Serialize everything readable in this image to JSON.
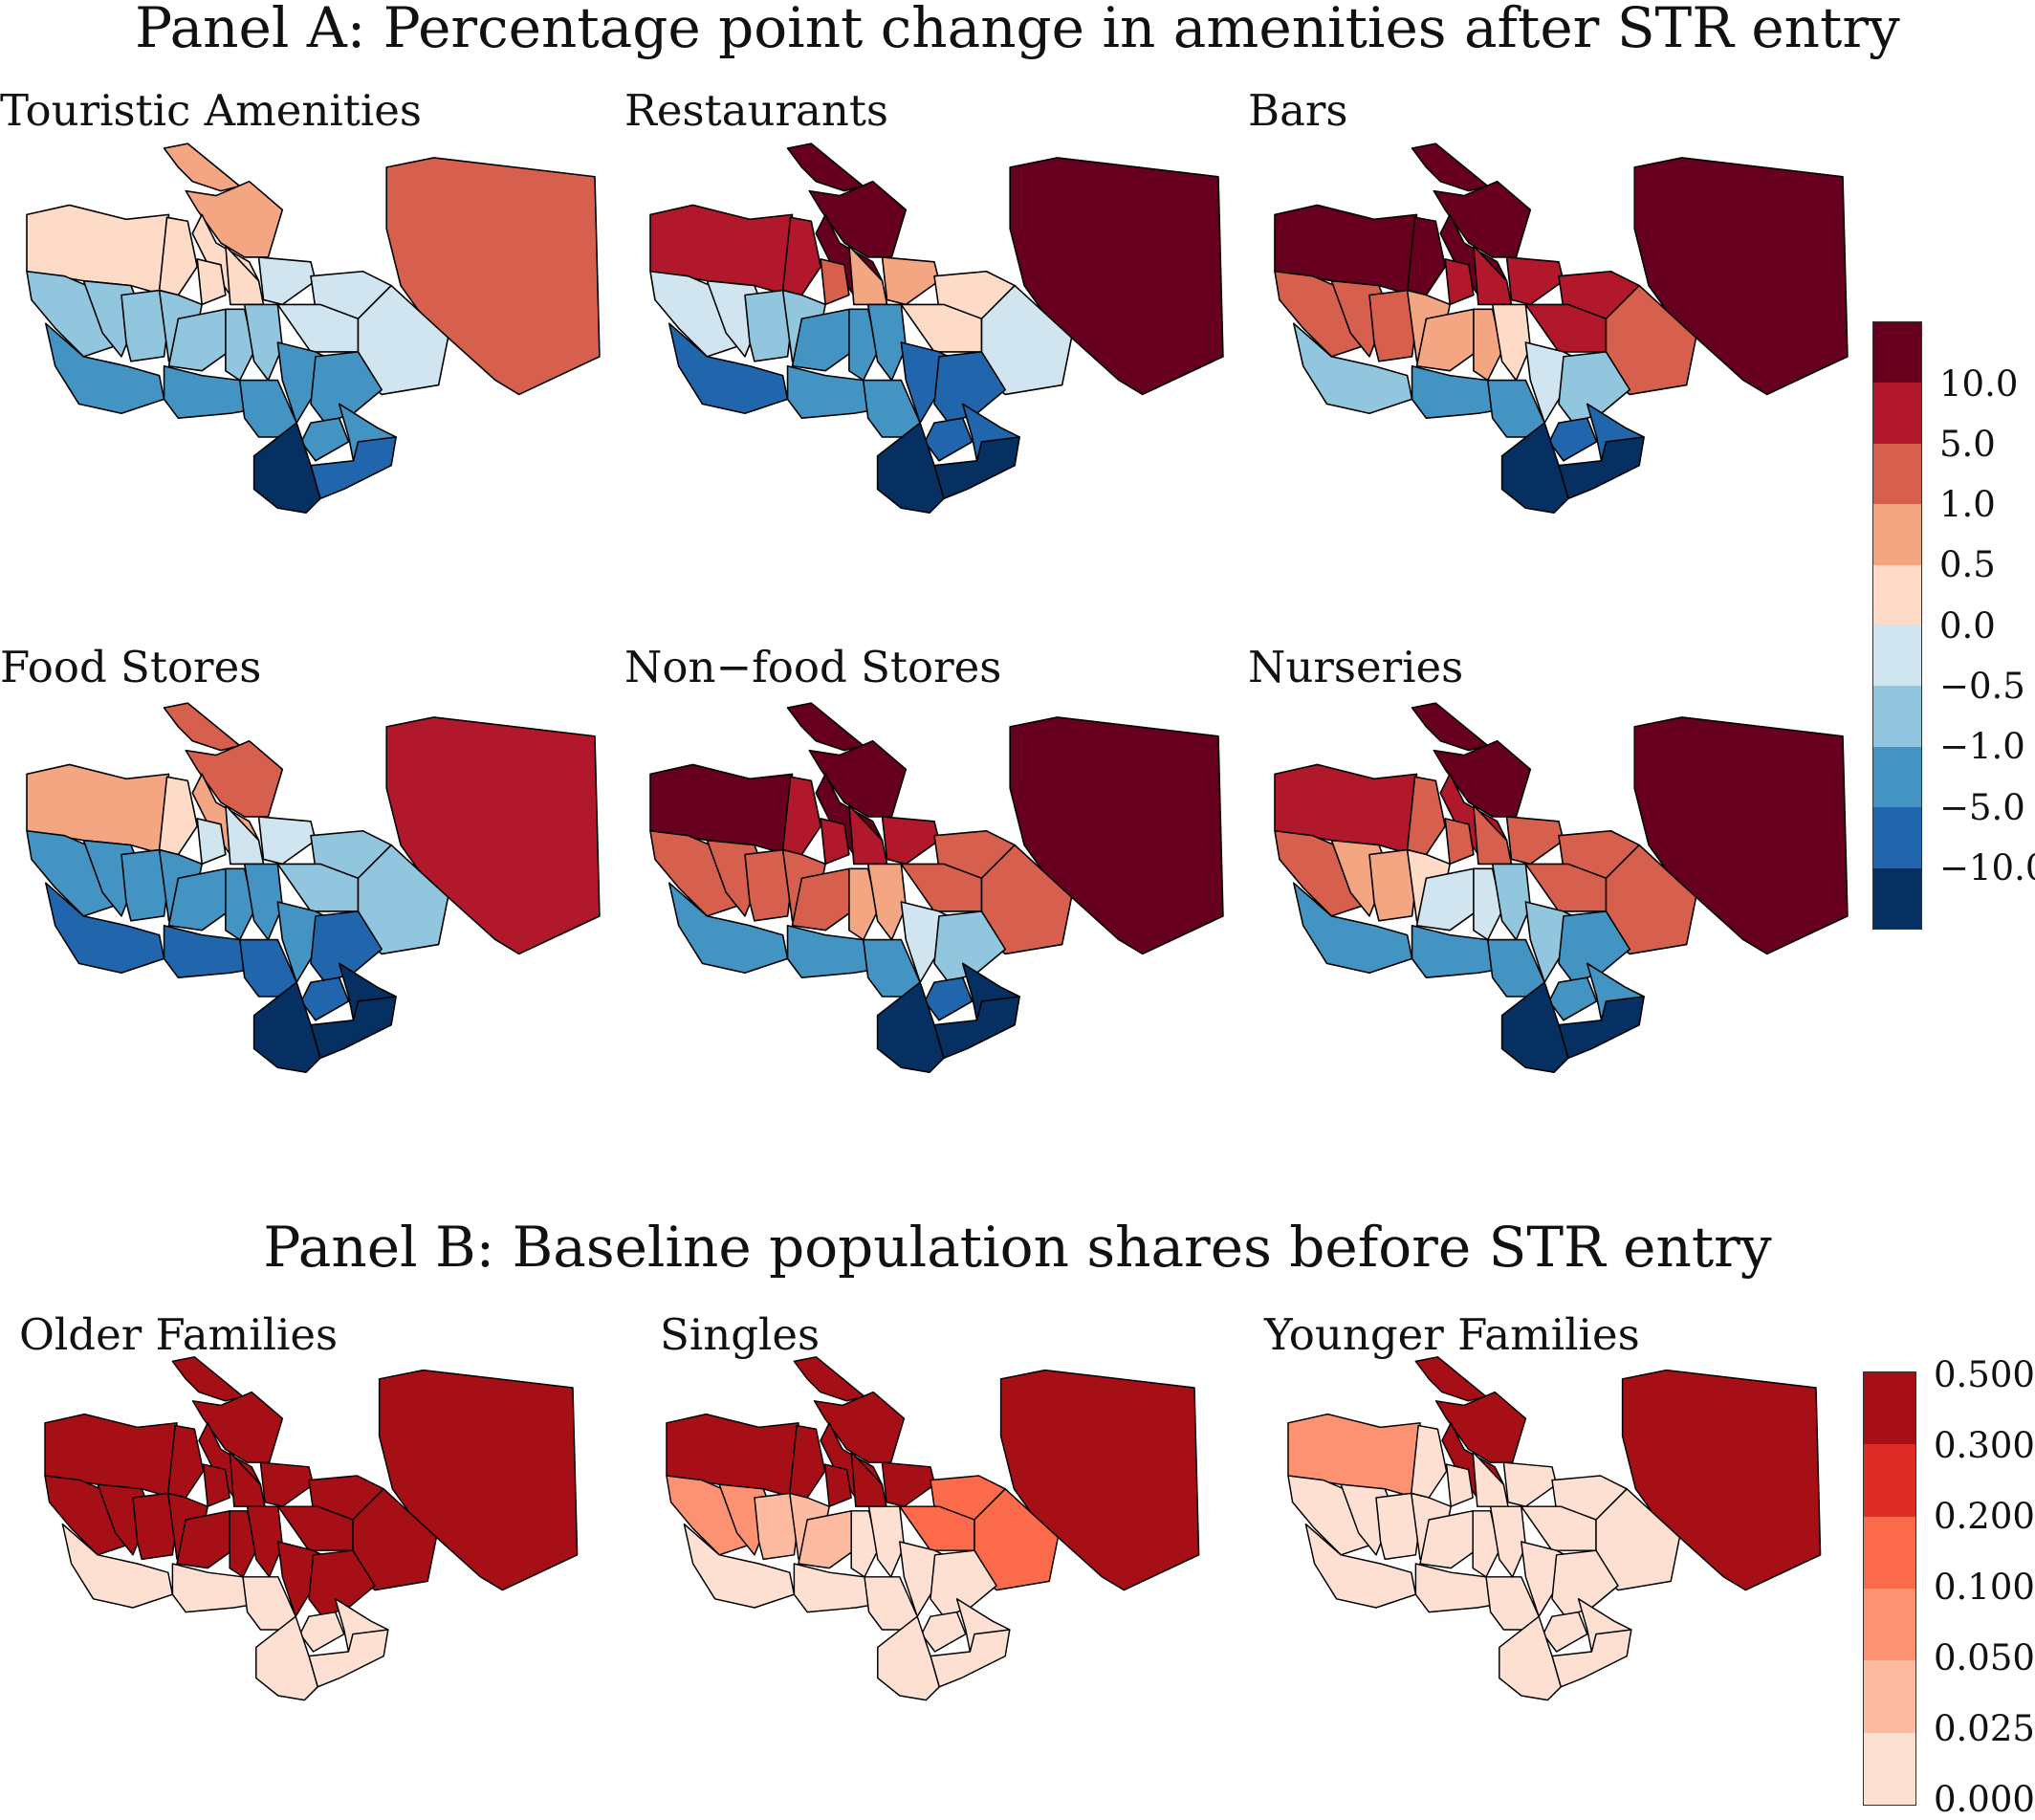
{
  "panel_a": {
    "title": "Panel A: Percentage point change in amenities after STR entry",
    "legend": {
      "labels": [
        "10.0",
        "5.0",
        "1.0",
        "0.5",
        "0.0",
        "−0.5",
        "−1.0",
        "−5.0",
        "−10.0"
      ],
      "colors": [
        "#67001f",
        "#b2182b",
        "#d6604d",
        "#f4a582",
        "#fddbc7",
        "#d1e5f0",
        "#92c5de",
        "#4393c3",
        "#2166ac",
        "#053061"
      ]
    },
    "maps": [
      {
        "title": "Touristic Amenities",
        "districts": [
          2,
          3,
          3,
          4,
          4,
          4,
          4,
          4,
          5,
          5,
          5,
          5,
          6,
          6,
          6,
          6,
          6,
          6,
          6,
          7,
          7,
          7,
          7,
          7,
          7,
          7,
          8,
          9
        ]
      },
      {
        "title": "Restaurants",
        "districts": [
          0,
          0,
          0,
          0,
          1,
          1,
          2,
          3,
          3,
          4,
          4,
          5,
          5,
          5,
          6,
          6,
          7,
          7,
          7,
          8,
          8,
          8,
          7,
          7,
          8,
          8,
          9,
          9
        ]
      },
      {
        "title": "Bars",
        "districts": [
          0,
          0,
          0,
          0,
          0,
          0,
          1,
          1,
          1,
          1,
          1,
          2,
          2,
          2,
          2,
          3,
          3,
          3,
          4,
          5,
          6,
          6,
          7,
          7,
          8,
          8,
          9,
          9
        ]
      },
      {
        "title": "Food Stores",
        "districts": [
          1,
          2,
          2,
          3,
          3,
          4,
          5,
          5,
          5,
          6,
          6,
          6,
          7,
          7,
          7,
          7,
          7,
          7,
          7,
          7,
          8,
          8,
          8,
          8,
          8,
          9,
          9,
          9
        ]
      },
      {
        "title": "Non−food Stores",
        "districts": [
          0,
          0,
          0,
          0,
          0,
          1,
          1,
          1,
          1,
          2,
          2,
          2,
          2,
          2,
          2,
          2,
          2,
          3,
          3,
          5,
          6,
          7,
          7,
          7,
          8,
          9,
          9,
          9
        ]
      },
      {
        "title": "Nurseries",
        "districts": [
          0,
          0,
          0,
          1,
          1,
          2,
          2,
          2,
          2,
          2,
          2,
          2,
          2,
          3,
          3,
          4,
          5,
          5,
          6,
          6,
          7,
          7,
          7,
          7,
          7,
          7,
          9,
          9
        ]
      }
    ]
  },
  "panel_b": {
    "title": "Panel B: Baseline population shares before STR entry",
    "legend": {
      "labels": [
        "0.500",
        "0.300",
        "0.200",
        "0.100",
        "0.050",
        "0.025",
        "0.000"
      ],
      "colors": [
        "#a50f15",
        "#de2d26",
        "#fb6a4a",
        "#fc9272",
        "#fcbba1",
        "#fee0d2"
      ]
    },
    "maps": [
      {
        "title": "Older Families",
        "districts": [
          0,
          0,
          0,
          0,
          0,
          0,
          0,
          0,
          0,
          0,
          0,
          0,
          0,
          0,
          0,
          0,
          0,
          0,
          0,
          0,
          0,
          5,
          5,
          5,
          5,
          5,
          5,
          5
        ]
      },
      {
        "title": "Singles",
        "districts": [
          0,
          0,
          0,
          0,
          0,
          0,
          0,
          0,
          0,
          2,
          2,
          2,
          3,
          3,
          4,
          4,
          4,
          5,
          5,
          5,
          5,
          5,
          5,
          5,
          5,
          5,
          5,
          5
        ]
      },
      {
        "title": "Younger Families",
        "districts": [
          0,
          0,
          0,
          0,
          3,
          5,
          5,
          5,
          5,
          5,
          5,
          5,
          5,
          5,
          5,
          5,
          5,
          5,
          5,
          5,
          5,
          5,
          5,
          5,
          5,
          5,
          5,
          5
        ]
      }
    ]
  }
}
